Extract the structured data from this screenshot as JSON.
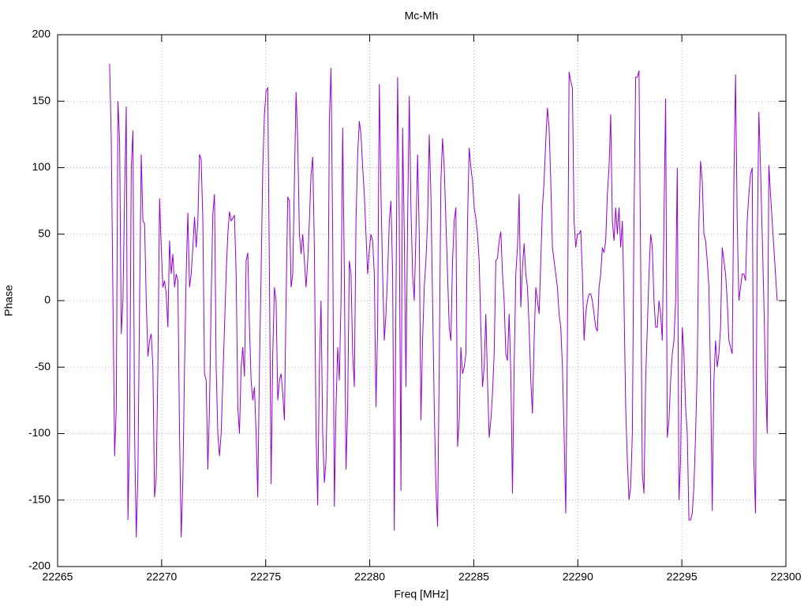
{
  "chart_data": {
    "type": "line",
    "title": "Mc-Mh",
    "x_label": "Freq [MHz]",
    "y_label": "Phase",
    "xlim": [
      22265,
      22300
    ],
    "xticks": [
      22265,
      22270,
      22275,
      22280,
      22285,
      22290,
      22295,
      22300
    ],
    "ylim": [
      -200,
      200
    ],
    "yticks": [
      -200,
      -150,
      -100,
      -50,
      0,
      50,
      100,
      150,
      200
    ],
    "grid": true,
    "x": [
      22267.5,
      22267.58,
      22267.66,
      22267.74,
      22267.82,
      22267.9,
      22267.98,
      22268.06,
      22268.14,
      22268.22,
      22268.3,
      22268.38,
      22268.46,
      22268.54,
      22268.62,
      22268.7,
      22268.78,
      22268.86,
      22268.94,
      22269.02,
      22269.1,
      22269.18,
      22269.26,
      22269.34,
      22269.42,
      22269.5,
      22269.58,
      22269.66,
      22269.74,
      22269.82,
      22269.9,
      22269.98,
      22270.06,
      22270.14,
      22270.22,
      22270.3,
      22270.38,
      22270.46,
      22270.54,
      22270.62,
      22270.7,
      22270.78,
      22270.86,
      22270.94,
      22271.02,
      22271.1,
      22271.18,
      22271.26,
      22271.34,
      22271.42,
      22271.5,
      22271.58,
      22271.66,
      22271.74,
      22271.82,
      22271.9,
      22271.98,
      22272.06,
      22272.14,
      22272.22,
      22272.3,
      22272.38,
      22272.46,
      22272.54,
      22272.62,
      22272.7,
      22272.78,
      22272.86,
      22272.94,
      22273.02,
      22273.1,
      22273.18,
      22273.26,
      22273.34,
      22273.42,
      22273.5,
      22273.58,
      22273.66,
      22273.74,
      22273.82,
      22273.9,
      22273.98,
      22274.06,
      22274.14,
      22274.22,
      22274.3,
      22274.38,
      22274.46,
      22274.54,
      22274.62,
      22274.7,
      22274.78,
      22274.86,
      22274.94,
      22275.02,
      22275.1,
      22275.18,
      22275.26,
      22275.34,
      22275.42,
      22275.5,
      22275.58,
      22275.66,
      22275.74,
      22275.82,
      22275.9,
      22275.98,
      22276.06,
      22276.14,
      22276.22,
      22276.3,
      22276.38,
      22276.46,
      22276.54,
      22276.62,
      22276.7,
      22276.78,
      22276.86,
      22276.94,
      22277.02,
      22277.1,
      22277.18,
      22277.26,
      22277.34,
      22277.42,
      22277.5,
      22277.58,
      22277.66,
      22277.74,
      22277.82,
      22277.9,
      22277.98,
      22278.06,
      22278.14,
      22278.22,
      22278.3,
      22278.38,
      22278.46,
      22278.54,
      22278.62,
      22278.7,
      22278.78,
      22278.86,
      22278.94,
      22279.02,
      22279.1,
      22279.18,
      22279.26,
      22279.34,
      22279.42,
      22279.5,
      22279.58,
      22279.66,
      22279.74,
      22279.82,
      22279.9,
      22279.98,
      22280.06,
      22280.14,
      22280.22,
      22280.3,
      22280.38,
      22280.46,
      22280.54,
      22280.62,
      22280.7,
      22280.78,
      22280.86,
      22280.94,
      22281.02,
      22281.1,
      22281.18,
      22281.26,
      22281.34,
      22281.42,
      22281.5,
      22281.58,
      22281.66,
      22281.74,
      22281.82,
      22281.9,
      22281.98,
      22282.06,
      22282.14,
      22282.22,
      22282.3,
      22282.38,
      22282.46,
      22282.54,
      22282.62,
      22282.7,
      22282.78,
      22282.86,
      22282.94,
      22283.02,
      22283.1,
      22283.18,
      22283.26,
      22283.34,
      22283.42,
      22283.5,
      22283.58,
      22283.66,
      22283.74,
      22283.82,
      22283.9,
      22283.98,
      22284.06,
      22284.14,
      22284.22,
      22284.3,
      22284.38,
      22284.46,
      22284.54,
      22284.62,
      22284.7,
      22284.78,
      22284.86,
      22284.94,
      22285.02,
      22285.1,
      22285.18,
      22285.26,
      22285.34,
      22285.42,
      22285.5,
      22285.58,
      22285.66,
      22285.74,
      22285.82,
      22285.9,
      22285.98,
      22286.06,
      22286.14,
      22286.22,
      22286.3,
      22286.38,
      22286.46,
      22286.54,
      22286.62,
      22286.7,
      22286.78,
      22286.86,
      22286.94,
      22287.02,
      22287.1,
      22287.18,
      22287.26,
      22287.34,
      22287.42,
      22287.5,
      22287.58,
      22287.66,
      22287.74,
      22287.82,
      22287.9,
      22287.98,
      22288.06,
      22288.14,
      22288.22,
      22288.3,
      22288.38,
      22288.46,
      22288.54,
      22288.62,
      22288.7,
      22288.78,
      22288.86,
      22288.94,
      22289.02,
      22289.1,
      22289.18,
      22289.26,
      22289.34,
      22289.42,
      22289.5,
      22289.58,
      22289.66,
      22289.74,
      22289.82,
      22289.9,
      22289.98,
      22290.06,
      22290.14,
      22290.22,
      22290.3,
      22290.38,
      22290.46,
      22290.54,
      22290.62,
      22290.7,
      22290.78,
      22290.86,
      22290.94,
      22291.02,
      22291.1,
      22291.18,
      22291.26,
      22291.34,
      22291.42,
      22291.5,
      22291.58,
      22291.66,
      22291.74,
      22291.82,
      22291.9,
      22291.98,
      22292.06,
      22292.14,
      22292.22,
      22292.3,
      22292.38,
      22292.46,
      22292.54,
      22292.62,
      22292.7,
      22292.78,
      22292.86,
      22292.94,
      22293.02,
      22293.1,
      22293.18,
      22293.26,
      22293.34,
      22293.42,
      22293.5,
      22293.58,
      22293.66,
      22293.74,
      22293.82,
      22293.9,
      22293.98,
      22294.06,
      22294.14,
      22294.22,
      22294.3,
      22294.38,
      22294.46,
      22294.54,
      22294.62,
      22294.7,
      22294.78,
      22294.86,
      22294.94,
      22295.02,
      22295.1,
      22295.18,
      22295.26,
      22295.34,
      22295.42,
      22295.5,
      22295.58,
      22295.66,
      22295.74,
      22295.82,
      22295.9,
      22295.98,
      22296.06,
      22296.14,
      22296.22,
      22296.3,
      22296.38,
      22296.46,
      22296.54,
      22296.62,
      22296.7,
      22296.78,
      22296.86,
      22296.94,
      22297.02,
      22297.1,
      22297.18,
      22297.26,
      22297.34,
      22297.42,
      22297.5,
      22297.58,
      22297.66,
      22297.74,
      22297.82,
      22297.9,
      22297.98,
      22298.06,
      22298.14,
      22298.22,
      22298.3,
      22298.38,
      22298.46,
      22298.54,
      22298.62,
      22298.7,
      22298.78,
      22298.86,
      22298.94,
      22299.02,
      22299.1,
      22299.18,
      22299.26,
      22299.34,
      22299.42,
      22299.5,
      22299.58
    ],
    "series": [
      {
        "color": "#9400d3",
        "values": [
          178,
          120,
          0,
          -117,
          -80,
          150,
          120,
          -25,
          0,
          80,
          146,
          -165,
          -100,
          100,
          128,
          -100,
          -178,
          -130,
          0,
          110,
          60,
          58,
          0,
          -42,
          -30,
          -25,
          -50,
          -148,
          -133,
          -50,
          77,
          40,
          10,
          15,
          5,
          -20,
          45,
          20,
          35,
          10,
          20,
          15,
          -100,
          -178,
          -135,
          -50,
          20,
          66,
          10,
          20,
          40,
          63,
          40,
          60,
          110,
          106,
          60,
          -55,
          -60,
          -127,
          -80,
          0,
          65,
          80,
          -50,
          -100,
          -117,
          -100,
          -60,
          -20,
          20,
          50,
          67,
          60,
          62,
          64,
          20,
          -80,
          -100,
          -50,
          -35,
          -57,
          30,
          36,
          -20,
          -60,
          -75,
          -65,
          -100,
          -148,
          -50,
          20,
          100,
          140,
          158,
          160,
          20,
          -138,
          -40,
          10,
          0,
          -75,
          -60,
          -55,
          -70,
          -90,
          0,
          78,
          75,
          10,
          20,
          90,
          157,
          120,
          50,
          35,
          50,
          30,
          10,
          30,
          60,
          95,
          108,
          40,
          -100,
          -154,
          -50,
          0,
          -100,
          -137,
          -120,
          -50,
          135,
          175,
          50,
          -155,
          -80,
          -35,
          -60,
          0,
          130,
          20,
          -127,
          -80,
          30,
          20,
          -40,
          -65,
          60,
          110,
          135,
          125,
          100,
          80,
          50,
          20,
          38,
          50,
          45,
          20,
          -80,
          -20,
          163,
          80,
          20,
          -30,
          -10,
          20,
          60,
          75,
          20,
          -173,
          0,
          168,
          60,
          -143,
          130,
          50,
          -65,
          60,
          154,
          70,
          20,
          0,
          50,
          110,
          50,
          -90,
          -30,
          10,
          30,
          60,
          125,
          80,
          0,
          -80,
          -140,
          -170,
          -50,
          90,
          122,
          100,
          60,
          20,
          -20,
          -30,
          30,
          60,
          70,
          -110,
          -90,
          -35,
          -55,
          -50,
          -40,
          60,
          115,
          100,
          90,
          70,
          62,
          50,
          30,
          -20,
          -65,
          -50,
          -10,
          -60,
          -103,
          -90,
          -70,
          -40,
          30,
          32,
          45,
          52,
          20,
          0,
          -40,
          -45,
          -10,
          -55,
          -145,
          -50,
          20,
          40,
          80,
          -5,
          25,
          43,
          20,
          10,
          -20,
          -60,
          -85,
          -30,
          10,
          0,
          -10,
          30,
          70,
          90,
          120,
          145,
          130,
          90,
          40,
          30,
          20,
          10,
          -10,
          -20,
          -50,
          -100,
          -160,
          -30,
          172,
          165,
          160,
          60,
          40,
          50,
          50,
          53,
          20,
          -30,
          -10,
          0,
          5,
          5,
          0,
          -10,
          -20,
          -23,
          10,
          20,
          40,
          36,
          45,
          80,
          100,
          140,
          60,
          45,
          70,
          50,
          70,
          40,
          60,
          0,
          -80,
          -120,
          -150,
          -140,
          -100,
          60,
          168,
          168,
          173,
          30,
          -130,
          -145,
          -60,
          -20,
          20,
          50,
          40,
          0,
          -20,
          -20,
          0,
          -10,
          -30,
          60,
          152,
          -103,
          -90,
          -60,
          -40,
          -30,
          0,
          100,
          -150,
          -120,
          -20,
          -40,
          -80,
          -100,
          -165,
          -165,
          -160,
          -140,
          -100,
          -50,
          60,
          105,
          90,
          50,
          45,
          30,
          10,
          -60,
          -158,
          -60,
          -30,
          -50,
          -40,
          -20,
          40,
          30,
          20,
          0,
          -30,
          -35,
          -40,
          90,
          170,
          60,
          0,
          10,
          20,
          20,
          15,
          60,
          80,
          95,
          100,
          -120,
          -160,
          40,
          142,
          100,
          50,
          0,
          -60,
          -100,
          102,
          80,
          60,
          40,
          20,
          0
        ]
      }
    ]
  }
}
